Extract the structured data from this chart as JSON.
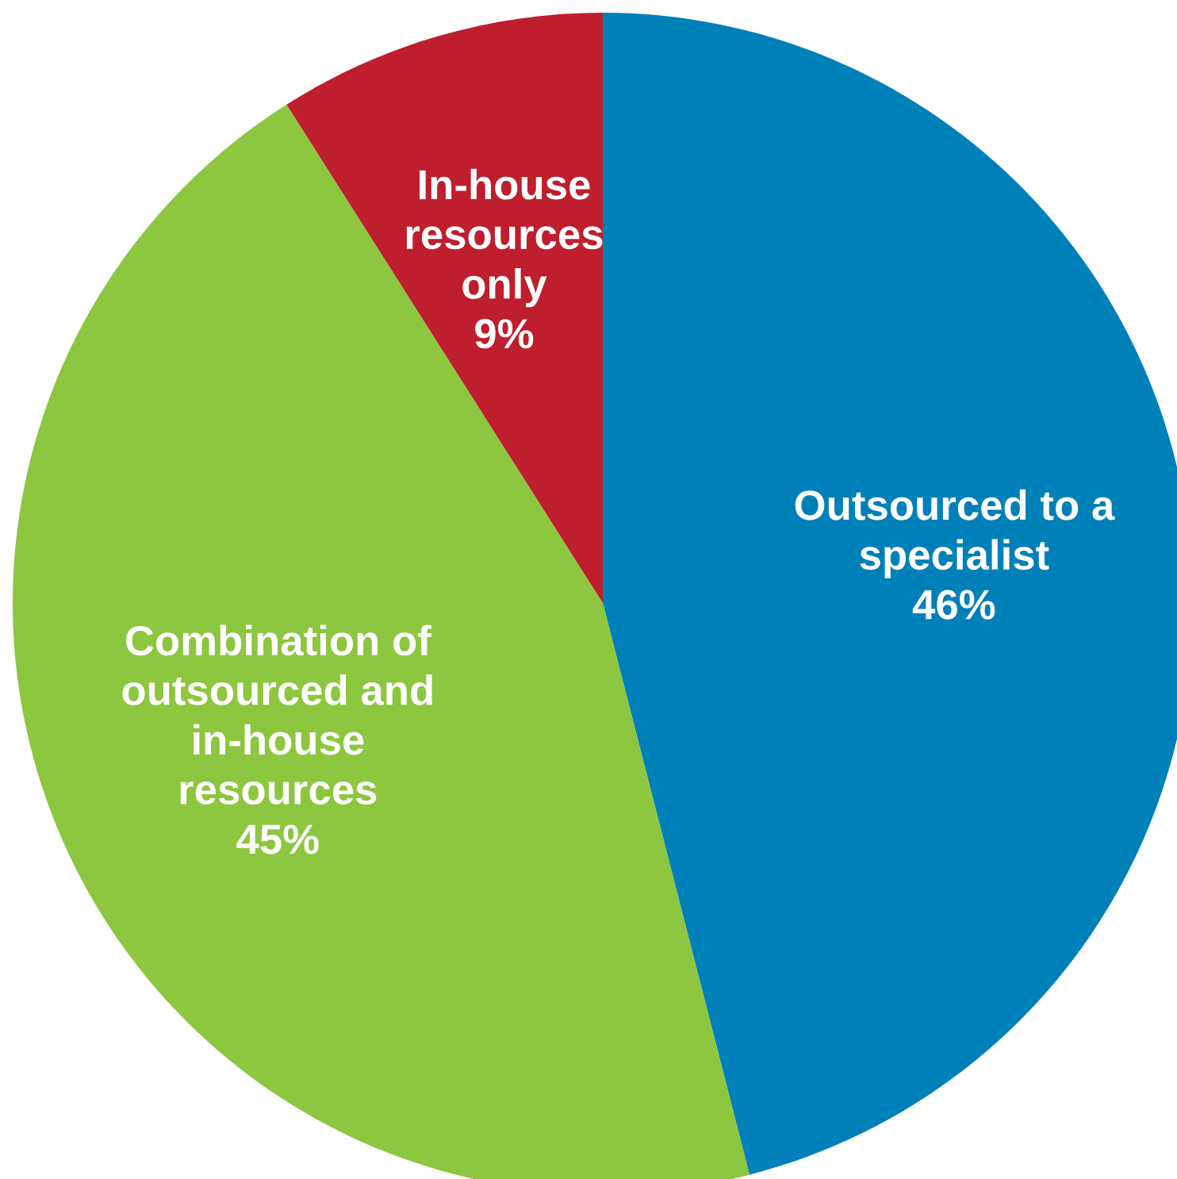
{
  "chart_data": {
    "type": "pie",
    "categories": [
      "Outsourced to a\nspecialist",
      "Combination of\noutsourced and\nin-house\nresources",
      "In-house\nresources\nonly"
    ],
    "values": [
      46,
      45,
      9
    ],
    "value_labels": [
      "46%",
      "45%",
      "9%"
    ],
    "colors": [
      "#0080b8",
      "#8dc63f",
      "#be1e2d"
    ]
  }
}
